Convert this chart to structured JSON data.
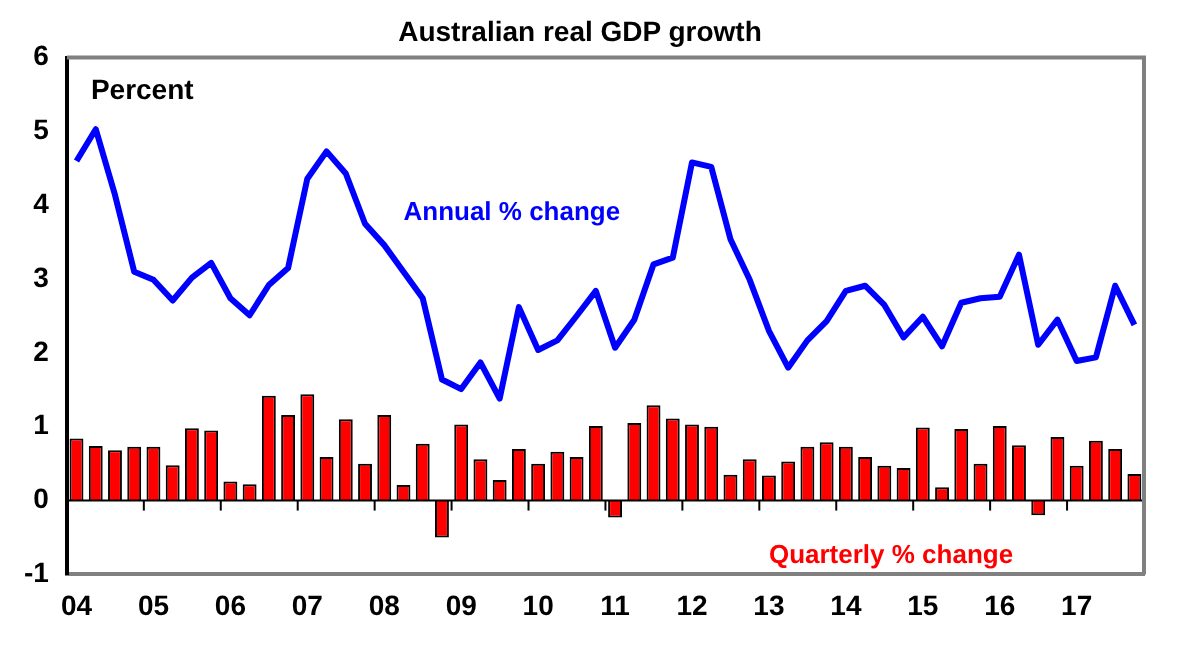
{
  "chart_data": {
    "type": "bar",
    "title": "Australian real GDP growth",
    "ylabel": "Percent",
    "categories": [
      "04",
      null,
      null,
      null,
      "05",
      null,
      null,
      null,
      "06",
      null,
      null,
      null,
      "07",
      null,
      null,
      null,
      "08",
      null,
      null,
      null,
      "09",
      null,
      null,
      null,
      "10",
      null,
      null,
      null,
      "11",
      null,
      null,
      null,
      "12",
      null,
      null,
      null,
      "13",
      null,
      null,
      null,
      "14",
      null,
      null,
      null,
      "15",
      null,
      null,
      null,
      "16",
      null,
      null,
      null,
      "17",
      null,
      null,
      null
    ],
    "series": [
      {
        "name": "Annual % change",
        "type": "line",
        "color": "#0000ff",
        "values": [
          4.6,
          5.03,
          4.14,
          3.1,
          2.99,
          2.71,
          3.02,
          3.22,
          2.74,
          2.51,
          2.92,
          3.15,
          4.36,
          4.73,
          4.43,
          3.75,
          3.46,
          3.1,
          2.74,
          1.64,
          1.51,
          1.87,
          1.38,
          2.62,
          2.04,
          2.17,
          2.5,
          2.84,
          2.07,
          2.45,
          3.2,
          3.29,
          4.58,
          4.52,
          3.54,
          2.99,
          2.3,
          1.8,
          2.17,
          2.43,
          2.84,
          2.91,
          2.65,
          2.21,
          2.49,
          2.09,
          2.68,
          2.74,
          2.76,
          3.33,
          2.11,
          2.45,
          1.89,
          1.94,
          2.91,
          2.38
        ]
      },
      {
        "name": "Quarterly % change",
        "color": "#ff0000",
        "values": [
          0.84,
          0.74,
          0.68,
          0.73,
          0.73,
          0.48,
          0.98,
          0.95,
          0.26,
          0.22,
          1.42,
          1.16,
          1.44,
          0.59,
          1.1,
          0.5,
          1.16,
          0.21,
          0.77,
          -0.5,
          1.03,
          0.56,
          0.28,
          0.7,
          0.5,
          0.66,
          0.59,
          1.01,
          -0.23,
          1.05,
          1.29,
          1.11,
          1.03,
          1.0,
          0.35,
          0.56,
          0.34,
          0.53,
          0.73,
          0.79,
          0.73,
          0.59,
          0.47,
          0.44,
          0.99,
          0.18,
          0.97,
          0.5,
          1.01,
          0.75,
          -0.2,
          0.86,
          0.47,
          0.81,
          0.7,
          0.36
        ]
      }
    ],
    "ref_lines": [
      {
        "axis": "y",
        "value": 0,
        "color": "#000000"
      }
    ],
    "ylim": [
      -1,
      6
    ],
    "yticks": [
      -1,
      0,
      1,
      2,
      3,
      4,
      5,
      6
    ],
    "grid": false,
    "legend": false
  }
}
